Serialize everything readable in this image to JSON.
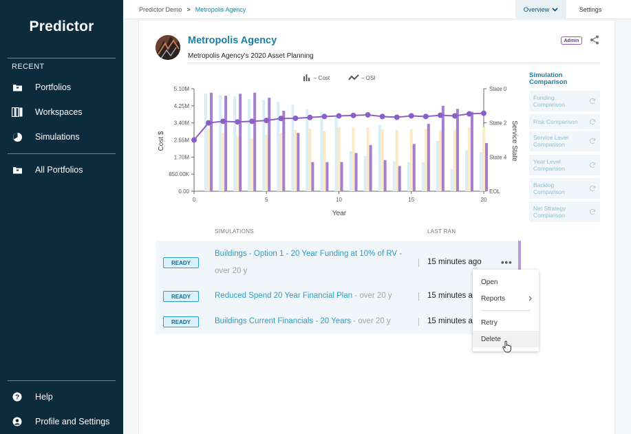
{
  "app": {
    "brand": "Predictor"
  },
  "sidebar": {
    "recent_label": "RECENT",
    "items": [
      {
        "label": "Portfolios",
        "icon": "portfolio-icon"
      },
      {
        "label": "Workspaces",
        "icon": "workspaces-icon"
      },
      {
        "label": "Simulations",
        "icon": "simulations-icon"
      },
      {
        "label": "All Portfolios",
        "icon": "portfolio-icon"
      }
    ],
    "bottom": [
      {
        "label": "Help",
        "icon": "help-icon"
      },
      {
        "label": "Profile and Settings",
        "icon": "profile-icon"
      }
    ]
  },
  "topbar": {
    "breadcrumb": [
      "Predictor Demo",
      "Metropolis Agency"
    ],
    "tabs": [
      "Overview",
      "Settings"
    ]
  },
  "agency": {
    "title": "Metropolis Agency",
    "subtitle": "Metropolis Agency's 2020 Asset Planning",
    "badge": "Admin"
  },
  "chart_data": {
    "type": "bar",
    "legend": [
      "– Cost",
      "– OSI"
    ],
    "xlabel": "Year",
    "ylabel": "Cost $",
    "y2label": "Service State",
    "y_ticks": [
      "0.00",
      "850.00K",
      "1.70M",
      "2.55M",
      "3.40M",
      "4.25M",
      "5.10M"
    ],
    "y2_ticks": [
      "State 0",
      "State 2",
      "State 4",
      "EOL"
    ],
    "x_ticks": [
      "0",
      "5",
      "10",
      "15",
      "20"
    ],
    "ylim": [
      0,
      5.1
    ],
    "xlim": [
      0,
      20
    ],
    "units": "millions of $",
    "series": [
      {
        "values": [
          4.85,
          4.8,
          4.72,
          4.6,
          4.55,
          4.45,
          4.3,
          4.1,
          3.95,
          3.7,
          2.0,
          1.75,
          3.3,
          1.5,
          1.45,
          1.45,
          2.5,
          1.1,
          2.05,
          1.95
        ]
      },
      {
        "values": [
          3.1,
          2.9,
          2.75,
          2.65,
          2.8,
          2.9,
          3.05,
          3.1,
          3.0,
          3.2,
          3.2,
          3.15,
          3.1,
          3.05,
          3.1,
          3.1,
          3.0,
          3.05,
          3.2,
          3.2
        ]
      },
      {
        "values": [
          4.9,
          4.75,
          4.85,
          4.9,
          4.65,
          4.0,
          2.9,
          1.45,
          1.45,
          1.45,
          1.9,
          2.3,
          1.55,
          1.25,
          2.35,
          3.35,
          4.25,
          4.1,
          3.95,
          2.4
        ]
      }
    ],
    "osi": [
      2.55,
      3.4,
      3.48,
      3.45,
      3.48,
      3.52,
      3.62,
      3.63,
      3.67,
      3.72,
      3.75,
      3.77,
      3.8,
      3.72,
      3.68,
      3.75,
      3.72,
      3.78,
      3.75,
      3.85,
      3.88
    ]
  },
  "simulation_comparison": {
    "title": "Simulation Comparison",
    "items": [
      "Funding Comparison",
      "Risk Comparison",
      "Service Level Comparison",
      "Year Level Comparison",
      "Backlog Comparison",
      "Net Strategy Comparison"
    ]
  },
  "table": {
    "headers": [
      "SIMULATIONS",
      "LAST RAN"
    ],
    "rows": [
      {
        "status": "READY",
        "name": "Buildings - Option 1 - 20 Year Funding at 10% of RV -",
        "suffix": "over 20 y",
        "last_ran": "15 minutes ago"
      },
      {
        "status": "READY",
        "name": "Reduced Spend 20 Year Financial Plan",
        "suffix": "- over 20 y",
        "last_ran": "15 minutes a"
      },
      {
        "status": "READY",
        "name": "Buildings Current Financials - 20 Years",
        "suffix": "- over 20 y",
        "last_ran": "15 minutes a"
      }
    ]
  },
  "context_menu": {
    "items": [
      "Open",
      "Reports",
      "Retry",
      "Delete"
    ]
  }
}
